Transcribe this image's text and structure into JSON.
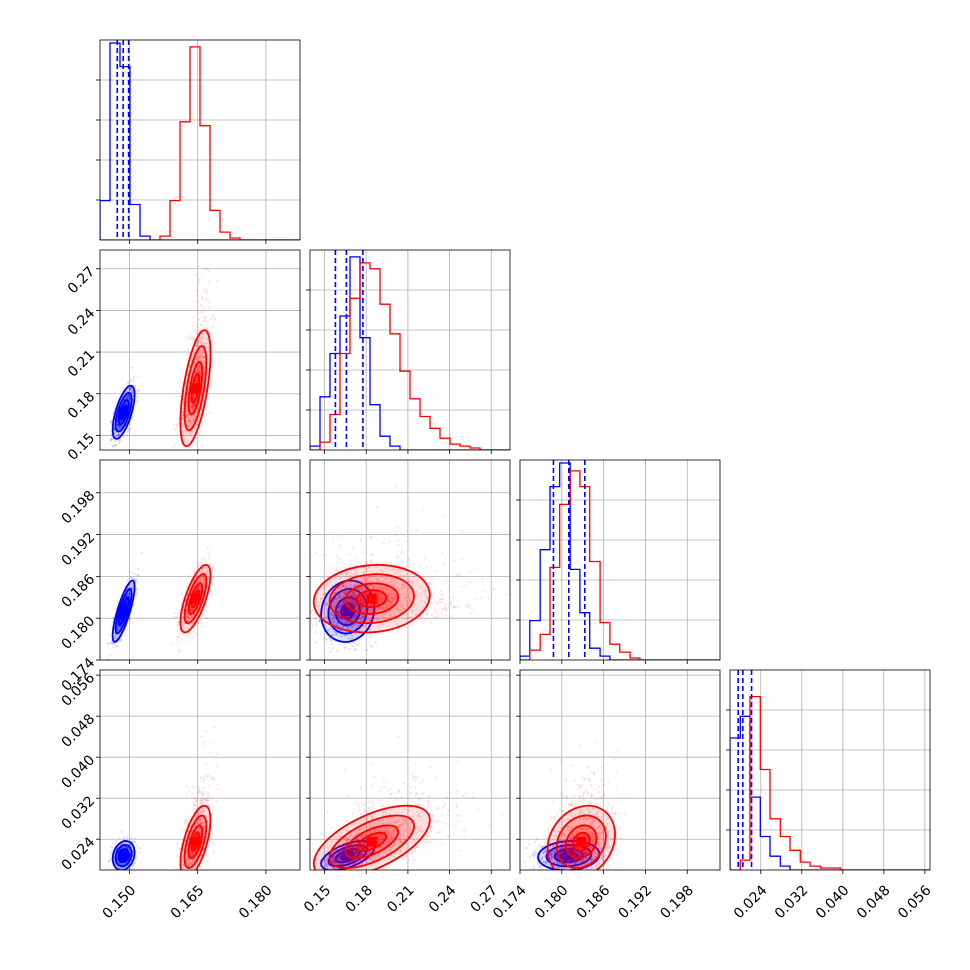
{
  "colors": {
    "a": "#0000ff",
    "b": "#ff0000",
    "grid": "#b0b0b0",
    "frame": "#000000"
  },
  "chart_data": {
    "type": "corner",
    "title": "",
    "series_colors": [
      "#0000ff",
      "#ff0000"
    ],
    "params": [
      {
        "range": [
          0.1435,
          0.1875
        ],
        "ticks": [
          0.15,
          0.165,
          0.18
        ],
        "tick_labels": [
          "0.150",
          "0.165",
          "0.180"
        ]
      },
      {
        "range": [
          0.1395,
          0.2835
        ],
        "ticks": [
          0.15,
          0.18,
          0.21,
          0.24,
          0.27
        ],
        "tick_labels": [
          "0.15",
          "0.18",
          "0.21",
          "0.24",
          "0.27"
        ]
      },
      {
        "range": [
          0.174,
          0.2027
        ],
        "ticks": [
          0.174,
          0.18,
          0.186,
          0.192,
          0.198
        ],
        "tick_labels": [
          "0.174",
          "0.180",
          "0.186",
          "0.192",
          "0.198"
        ]
      },
      {
        "range": [
          0.018,
          0.057
        ],
        "ticks": [
          0.024,
          0.032,
          0.04,
          0.048,
          0.056
        ],
        "tick_labels": [
          "0.024",
          "0.032",
          "0.040",
          "0.048",
          "0.056"
        ]
      }
    ],
    "blue_quantiles": [
      [
        0.1473,
        0.1486,
        0.1498
      ],
      [
        0.1578,
        0.1657,
        0.1776
      ],
      [
        0.1788,
        0.181,
        0.1833
      ],
      [
        0.0196,
        0.0205,
        0.0222
      ]
    ],
    "histograms": [
      {
        "edges": [
          0.1435,
          0.1457,
          0.1479,
          0.1501,
          0.1523,
          0.1545,
          0.1567,
          0.1589,
          0.1611,
          0.1633,
          0.1655,
          0.1677,
          0.1699,
          0.1721,
          0.1743,
          0.1765,
          0.1787,
          0.1809,
          0.1831,
          0.1853,
          0.1875
        ],
        "blue": [
          0.2,
          1.0,
          0.88,
          0.18,
          0.02,
          0,
          0,
          0,
          0,
          0,
          0,
          0,
          0,
          0,
          0,
          0,
          0,
          0,
          0,
          0
        ],
        "red": [
          0,
          0,
          0,
          0,
          0,
          0,
          0.02,
          0.2,
          0.6,
          0.98,
          0.58,
          0.15,
          0.04,
          0.01,
          0,
          0,
          0,
          0,
          0,
          0
        ]
      },
      {
        "edges": [
          0.1395,
          0.1467,
          0.1539,
          0.1611,
          0.1683,
          0.1755,
          0.1827,
          0.1899,
          0.1971,
          0.2043,
          0.2115,
          0.2187,
          0.2259,
          0.2331,
          0.2403,
          0.2475,
          0.2547,
          0.2619,
          0.2691,
          0.2763,
          0.2835
        ],
        "blue": [
          0.02,
          0.27,
          0.49,
          0.68,
          0.98,
          0.57,
          0.23,
          0.07,
          0.02,
          0,
          0,
          0,
          0,
          0,
          0,
          0,
          0,
          0,
          0,
          0
        ],
        "red": [
          0,
          0.04,
          0.18,
          0.49,
          0.77,
          0.95,
          0.92,
          0.74,
          0.59,
          0.4,
          0.26,
          0.17,
          0.11,
          0.06,
          0.03,
          0.02,
          0.01,
          0,
          0,
          0
        ]
      },
      {
        "edges": [
          0.174,
          0.1754,
          0.1769,
          0.1783,
          0.1797,
          0.1812,
          0.1826,
          0.184,
          0.1855,
          0.1869,
          0.1883,
          0.1898,
          0.1912,
          0.1926,
          0.1941,
          0.1955,
          0.1969,
          0.1984,
          0.1998,
          0.2012,
          0.2027
        ],
        "blue": [
          0.02,
          0.2,
          0.56,
          0.88,
          1.0,
          0.46,
          0.24,
          0.06,
          0.02,
          0,
          0,
          0,
          0,
          0,
          0,
          0,
          0,
          0,
          0,
          0
        ],
        "red": [
          0,
          0.05,
          0.13,
          0.47,
          0.79,
          0.96,
          0.88,
          0.5,
          0.19,
          0.08,
          0.04,
          0.01,
          0,
          0,
          0,
          0,
          0,
          0,
          0,
          0
        ]
      },
      {
        "edges": [
          0.018,
          0.02,
          0.0219,
          0.0239,
          0.0258,
          0.0278,
          0.0297,
          0.0317,
          0.0336,
          0.0356,
          0.0375,
          0.0395,
          0.0414,
          0.0434,
          0.0453,
          0.0473,
          0.0492,
          0.0512,
          0.0531,
          0.0551,
          0.057
        ],
        "blue": [
          0.67,
          0.78,
          0.37,
          0.17,
          0.07,
          0.02,
          0,
          0,
          0,
          0,
          0,
          0,
          0,
          0,
          0,
          0,
          0,
          0,
          0,
          0
        ],
        "red": [
          0,
          0.05,
          0.88,
          0.51,
          0.26,
          0.17,
          0.1,
          0.04,
          0.02,
          0.01,
          0.01,
          0,
          0,
          0,
          0,
          0,
          0,
          0,
          0,
          0
        ]
      }
    ],
    "posteriors": {
      "blue": {
        "mean": [
          0.1487,
          0.1667,
          0.181,
          0.0208
        ],
        "std": [
          0.0011,
          0.0087,
          0.002,
          0.0013
        ],
        "corr": [
          [
            0,
            0,
            0,
            0
          ],
          [
            0.65,
            0,
            0,
            0
          ],
          [
            0.8,
            0.1,
            0,
            0
          ],
          [
            0.2,
            0.55,
            0.1,
            0
          ]
        ]
      },
      "red": {
        "mean": [
          0.1645,
          0.184,
          0.1828,
          0.0235
        ],
        "std": [
          0.0015,
          0.019,
          0.0022,
          0.0032
        ],
        "corr": [
          [
            0,
            0,
            0,
            0
          ],
          [
            0.6,
            0,
            0,
            0
          ],
          [
            0.7,
            0.1,
            0,
            0
          ],
          [
            0.6,
            0.6,
            0.2,
            0
          ]
        ]
      }
    }
  }
}
